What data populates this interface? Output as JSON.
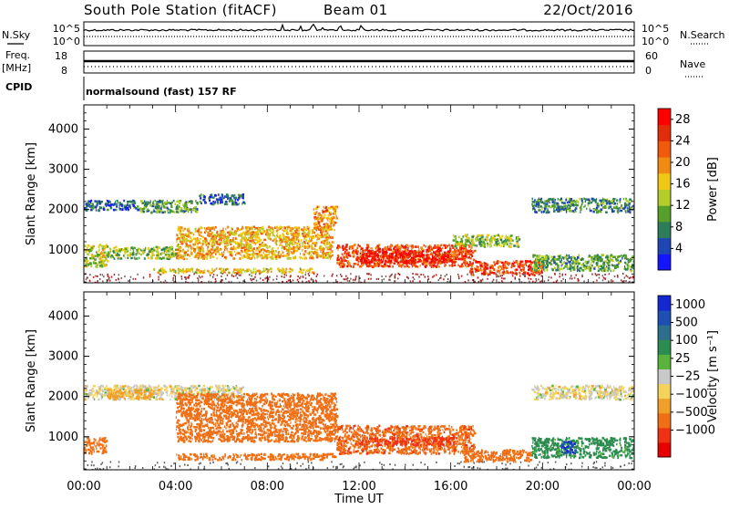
{
  "header": {
    "station": "South Pole Station (fitACF)",
    "beam": "Beam 01",
    "date": "22/Oct/2016"
  },
  "left_labels": {
    "nsky": "N.Sky",
    "freq_line1": "Freq.",
    "freq_line2": "[MHz]",
    "cpid": "CPID"
  },
  "right_labels": {
    "nsearch": "N.Search",
    "nave": "Nave"
  },
  "cpid_text": "normalsound (fast) 157 RF",
  "strip_ticks": {
    "noise_left_top": "10^5",
    "noise_left_bottom": "10^0",
    "noise_right_top": "10^5",
    "noise_right_bottom": "10^0",
    "freq_left_top": "18",
    "freq_left_bottom": "8",
    "nave_right_top": "60",
    "nave_right_bottom": "0"
  },
  "colors": {
    "power_scale": [
      "#1414ff",
      "#1e46b4",
      "#2d7d5a",
      "#54a02a",
      "#b4cd28",
      "#f0c814",
      "#f08c14",
      "#f05a0a",
      "#e12d0a",
      "#ff0000"
    ],
    "velocity_scale": [
      "#e60000",
      "#f03214",
      "#f06e14",
      "#f0a028",
      "#f5d25a",
      "#c8c8c8",
      "#5ab43c",
      "#2d8c50",
      "#2d6e8c",
      "#1e50b4",
      "#1428d2"
    ]
  },
  "chart_data": [
    {
      "type": "heatmap",
      "name_hint": "power",
      "title": "",
      "xlabel": "",
      "ylabel": "Slant Range [km]",
      "x_ticks": [
        "00:00",
        "04:00",
        "08:00",
        "12:00",
        "16:00",
        "20:00",
        "00:00"
      ],
      "xlim_hours": [
        0,
        24
      ],
      "ylim": [
        180,
        4600
      ],
      "y_ticks": [
        1000,
        2000,
        3000,
        4000
      ],
      "colorbar": {
        "label": "Power [dB]",
        "ticks": [
          4,
          8,
          12,
          16,
          20,
          24,
          28
        ],
        "range": [
          0,
          30
        ]
      },
      "regions": [
        {
          "x": [
            0.0,
            2.4
          ],
          "y": [
            2000,
            2250
          ],
          "value": 6
        },
        {
          "x": [
            2.4,
            5.0
          ],
          "y": [
            1950,
            2250
          ],
          "value": 10
        },
        {
          "x": [
            5.0,
            7.0
          ],
          "y": [
            2150,
            2400
          ],
          "value": 6
        },
        {
          "x": [
            0.0,
            1.0
          ],
          "y": [
            600,
            1150
          ],
          "value": 14
        },
        {
          "x": [
            1.0,
            4.0
          ],
          "y": [
            800,
            1100
          ],
          "value": 12
        },
        {
          "x": [
            3.0,
            10.0
          ],
          "y": [
            450,
            560
          ],
          "value": 16
        },
        {
          "x": [
            4.0,
            10.8
          ],
          "y": [
            800,
            1600
          ],
          "value": 18
        },
        {
          "x": [
            10.0,
            11.0
          ],
          "y": [
            1500,
            2100
          ],
          "value": 20
        },
        {
          "x": [
            11.0,
            17.0
          ],
          "y": [
            600,
            1150
          ],
          "value": 24
        },
        {
          "x": [
            12.0,
            16.0
          ],
          "y": [
            700,
            1000
          ],
          "value": 28
        },
        {
          "x": [
            16.8,
            20.0
          ],
          "y": [
            400,
            750
          ],
          "value": 24
        },
        {
          "x": [
            19.5,
            24.0
          ],
          "y": [
            500,
            900
          ],
          "value": 10
        },
        {
          "x": [
            19.5,
            24.0
          ],
          "y": [
            1950,
            2300
          ],
          "value": 8
        },
        {
          "x": [
            16.0,
            19.0
          ],
          "y": [
            1100,
            1400
          ],
          "value": 12
        }
      ]
    },
    {
      "type": "heatmap",
      "name_hint": "velocity",
      "title": "",
      "xlabel": "Time UT",
      "ylabel": "Slant Range [km]",
      "x_ticks": [
        "00:00",
        "04:00",
        "08:00",
        "12:00",
        "16:00",
        "20:00",
        "00:00"
      ],
      "xlim_hours": [
        0,
        24
      ],
      "ylim": [
        180,
        4600
      ],
      "y_ticks": [
        1000,
        2000,
        3000,
        4000
      ],
      "colorbar": {
        "label": "Velocity [m s⁻¹]",
        "ticks": [
          -1000,
          -500,
          -100,
          -25,
          25,
          100,
          500,
          1000
        ],
        "tick_labels": [
          "−1000",
          "−500",
          "−100",
          "−25",
          "25",
          "100",
          "500",
          "1000"
        ]
      },
      "regions": [
        {
          "x": [
            0.0,
            7.0
          ],
          "y": [
            1950,
            2300
          ],
          "value": 0
        },
        {
          "x": [
            0.0,
            1.0
          ],
          "y": [
            600,
            1000
          ],
          "value": -200
        },
        {
          "x": [
            1.0,
            3.0
          ],
          "y": [
            1950,
            2200
          ],
          "value": -50
        },
        {
          "x": [
            4.0,
            11.0
          ],
          "y": [
            900,
            2100
          ],
          "value": -300
        },
        {
          "x": [
            4.0,
            11.0
          ],
          "y": [
            450,
            600
          ],
          "value": -150
        },
        {
          "x": [
            11.0,
            17.0
          ],
          "y": [
            600,
            1300
          ],
          "value": -400
        },
        {
          "x": [
            12.0,
            16.0
          ],
          "y": [
            800,
            1000
          ],
          "value": -700
        },
        {
          "x": [
            16.5,
            19.5
          ],
          "y": [
            400,
            700
          ],
          "value": -200
        },
        {
          "x": [
            19.5,
            24.0
          ],
          "y": [
            500,
            1000
          ],
          "value": 150
        },
        {
          "x": [
            20.8,
            21.4
          ],
          "y": [
            600,
            900
          ],
          "value": 900
        },
        {
          "x": [
            19.5,
            24.0
          ],
          "y": [
            1950,
            2300
          ],
          "value": 0
        }
      ]
    }
  ]
}
